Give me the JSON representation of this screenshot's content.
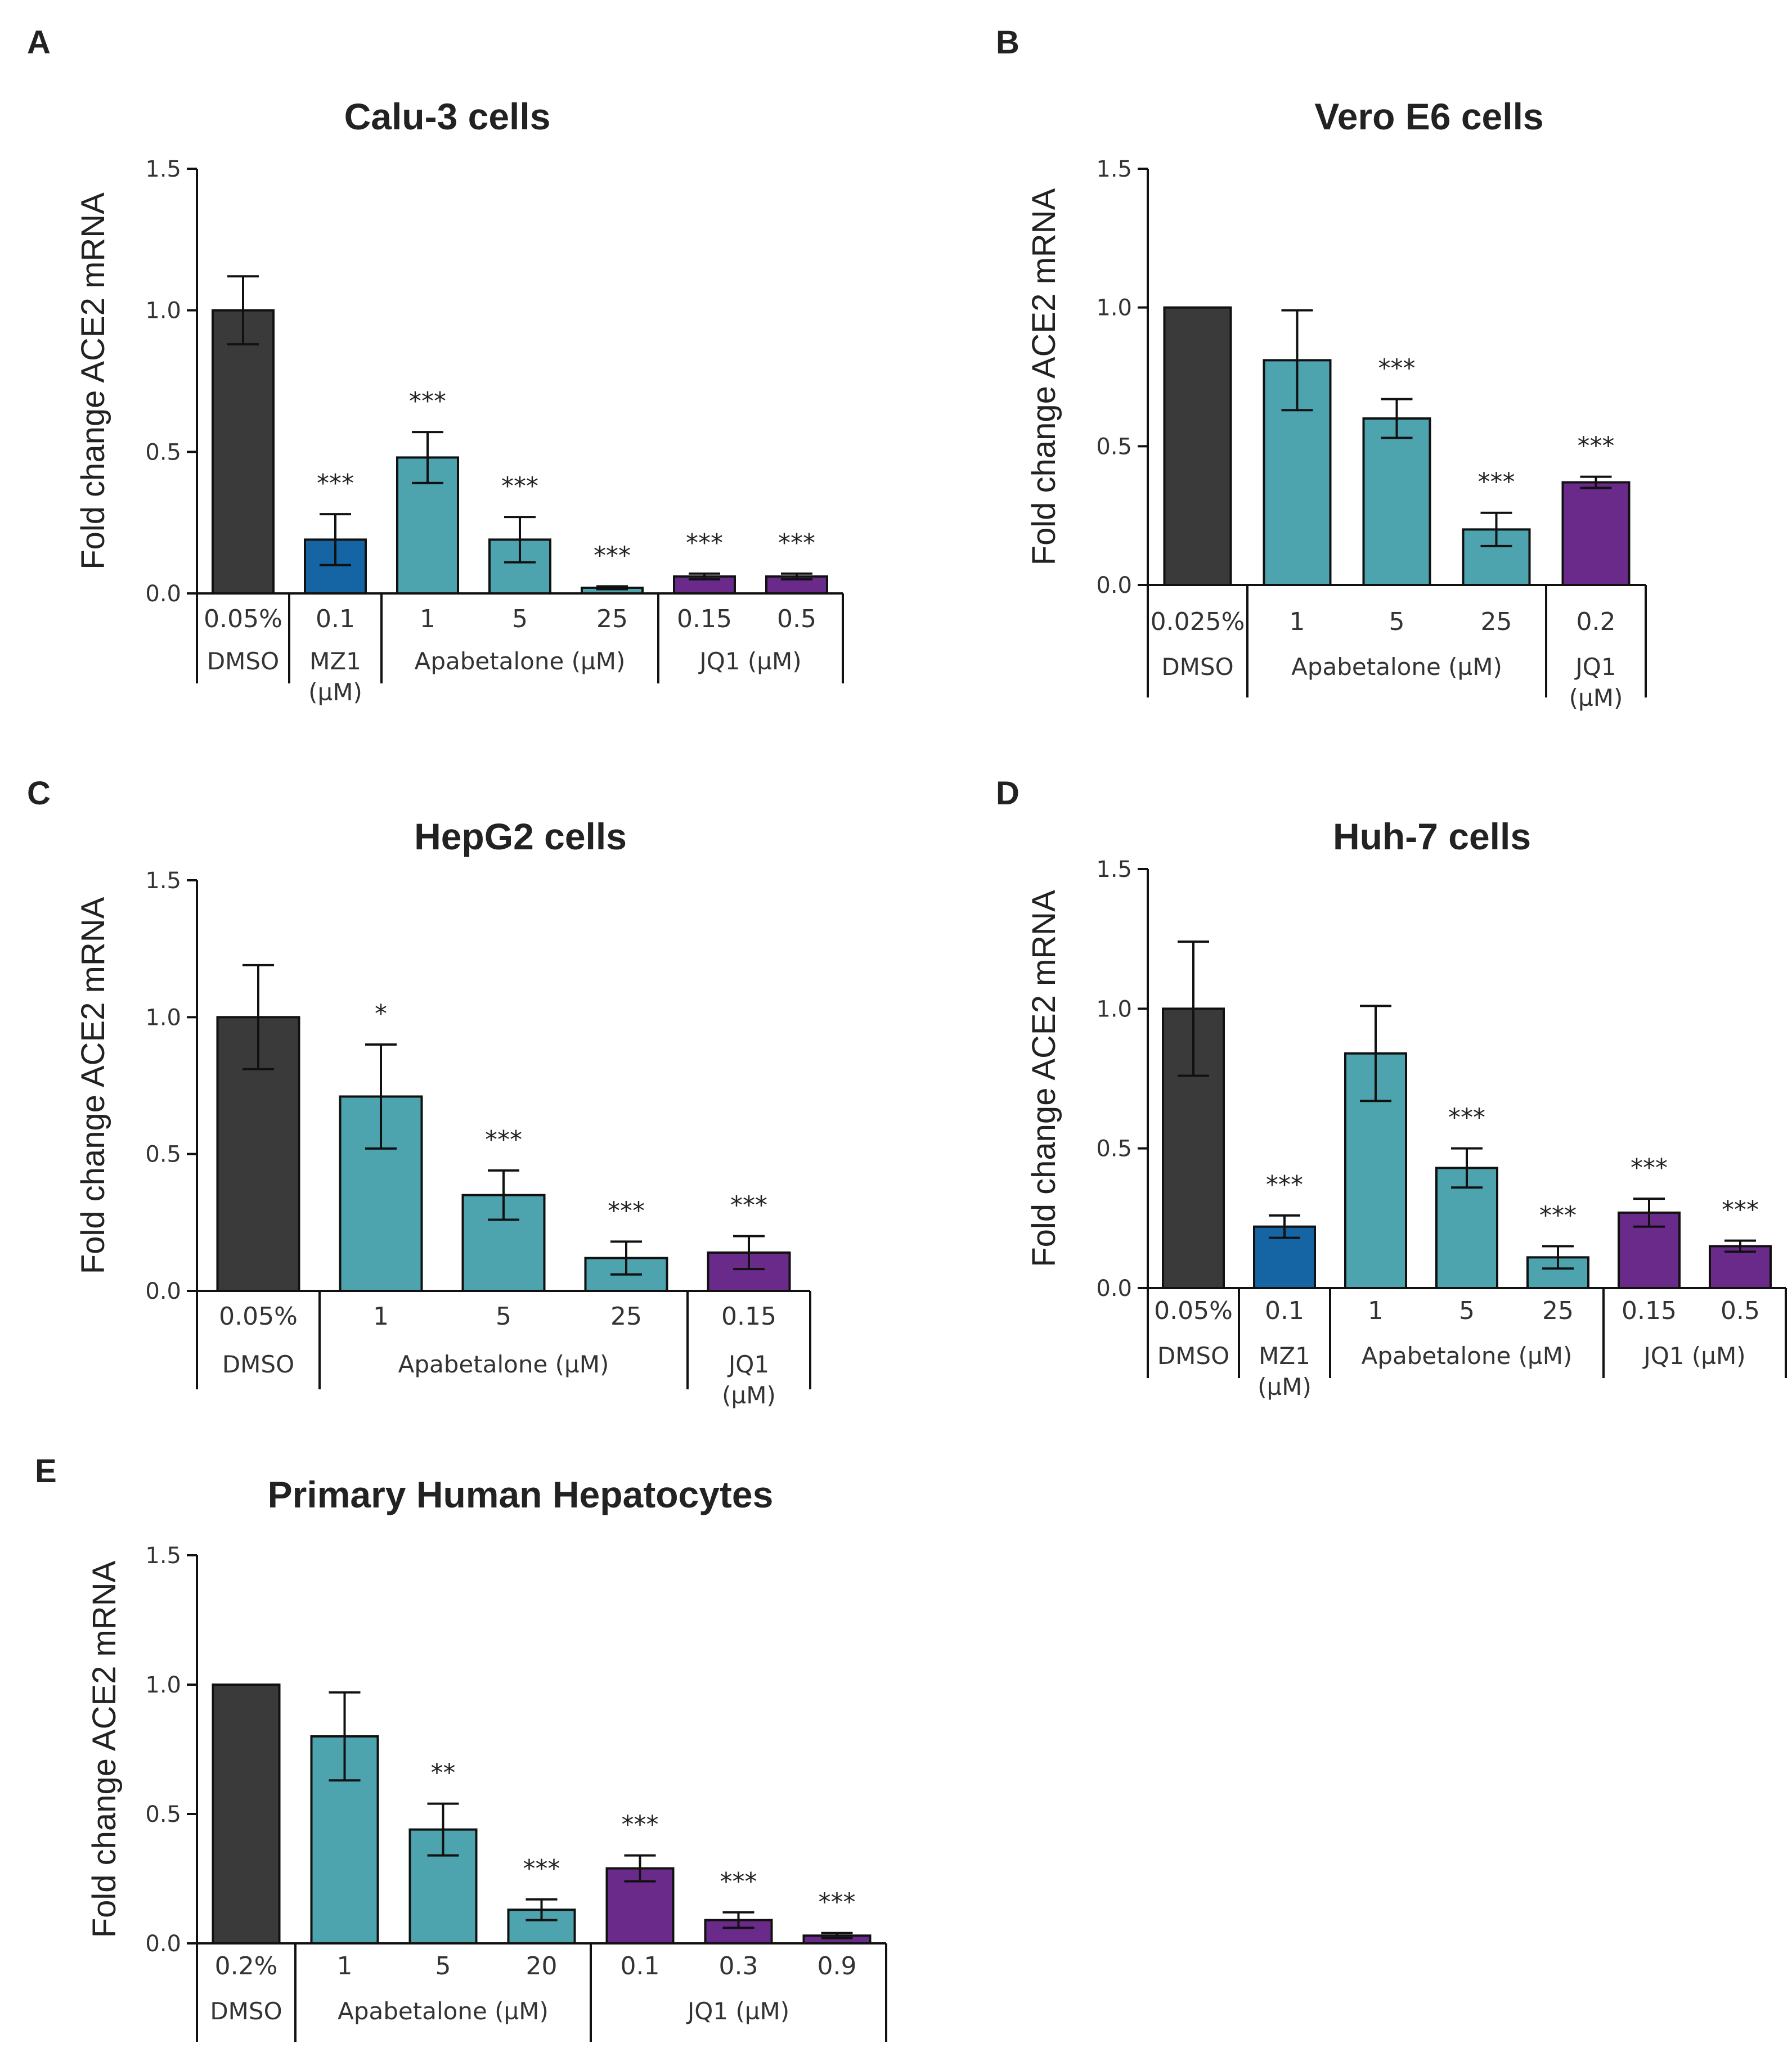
{
  "colors": {
    "dmso": "#3a3a3a",
    "mz1": "#1565a4",
    "apabetalone": "#4da3ae",
    "jq1": "#6a2a8a",
    "axis": "#111111"
  },
  "chart_data": [
    {
      "panel": "A",
      "type": "bar",
      "title": "Calu-3 cells",
      "ylabel": "Fold change ACE2  mRNA",
      "ylim": [
        0,
        1.5
      ],
      "yticks": [
        "0.0",
        "0.5",
        "1.0",
        "1.5"
      ],
      "categories": [
        "0.05%",
        "0.1",
        "1",
        "5",
        "25",
        "0.15",
        "0.5"
      ],
      "values": [
        1.0,
        0.19,
        0.48,
        0.19,
        0.02,
        0.06,
        0.06
      ],
      "errors": [
        0.12,
        0.09,
        0.09,
        0.08,
        0.005,
        0.01,
        0.01
      ],
      "colors": [
        "dmso",
        "mz1",
        "apabetalone",
        "apabetalone",
        "apabetalone",
        "jq1",
        "jq1"
      ],
      "significance": [
        "",
        "***",
        "***",
        "***",
        "***",
        "***",
        "***"
      ],
      "groups": [
        {
          "lines": [
            "DMSO"
          ],
          "from": 0,
          "to": 0
        },
        {
          "lines": [
            "MZ1",
            "(µM)"
          ],
          "from": 1,
          "to": 1
        },
        {
          "lines": [
            "Apabetalone (µM)"
          ],
          "from": 2,
          "to": 4
        },
        {
          "lines": [
            "JQ1 (µM)"
          ],
          "from": 5,
          "to": 6
        }
      ]
    },
    {
      "panel": "B",
      "type": "bar",
      "title": "Vero E6 cells",
      "ylabel": "Fold change ACE2  mRNA",
      "ylim": [
        0,
        1.5
      ],
      "yticks": [
        "0.0",
        "0.5",
        "1.0",
        "1.5"
      ],
      "categories": [
        "0.025%",
        "1",
        "5",
        "25",
        "0.2"
      ],
      "values": [
        1.0,
        0.81,
        0.6,
        0.2,
        0.37
      ],
      "errors": [
        0.0,
        0.18,
        0.07,
        0.06,
        0.02
      ],
      "colors": [
        "dmso",
        "apabetalone",
        "apabetalone",
        "apabetalone",
        "jq1"
      ],
      "significance": [
        "",
        "",
        "***",
        "***",
        "***"
      ],
      "groups": [
        {
          "lines": [
            "DMSO"
          ],
          "from": 0,
          "to": 0
        },
        {
          "lines": [
            "Apabetalone (µM)"
          ],
          "from": 1,
          "to": 3
        },
        {
          "lines": [
            "JQ1",
            "(µM)"
          ],
          "from": 4,
          "to": 4
        }
      ]
    },
    {
      "panel": "C",
      "type": "bar",
      "title": "HepG2 cells",
      "ylabel": "Fold change ACE2  mRNA",
      "ylim": [
        0,
        1.5
      ],
      "yticks": [
        "0.0",
        "0.5",
        "1.0",
        "1.5"
      ],
      "categories": [
        "0.05%",
        "1",
        "5",
        "25",
        "0.15"
      ],
      "values": [
        1.0,
        0.71,
        0.35,
        0.12,
        0.14
      ],
      "errors": [
        0.19,
        0.19,
        0.09,
        0.06,
        0.06
      ],
      "colors": [
        "dmso",
        "apabetalone",
        "apabetalone",
        "apabetalone",
        "jq1"
      ],
      "significance": [
        "",
        "*",
        "***",
        "***",
        "***"
      ],
      "groups": [
        {
          "lines": [
            "DMSO"
          ],
          "from": 0,
          "to": 0
        },
        {
          "lines": [
            "Apabetalone (µM)"
          ],
          "from": 1,
          "to": 3
        },
        {
          "lines": [
            "JQ1",
            "(µM)"
          ],
          "from": 4,
          "to": 4
        }
      ]
    },
    {
      "panel": "D",
      "type": "bar",
      "title": "Huh-7 cells",
      "ylabel": "Fold change ACE2  mRNA",
      "ylim": [
        0,
        1.5
      ],
      "yticks": [
        "0.0",
        "0.5",
        "1.0",
        "1.5"
      ],
      "categories": [
        "0.05%",
        "0.1",
        "1",
        "5",
        "25",
        "0.15",
        "0.5"
      ],
      "values": [
        1.0,
        0.22,
        0.84,
        0.43,
        0.11,
        0.27,
        0.15
      ],
      "errors": [
        0.24,
        0.04,
        0.17,
        0.07,
        0.04,
        0.05,
        0.02
      ],
      "colors": [
        "dmso",
        "mz1",
        "apabetalone",
        "apabetalone",
        "apabetalone",
        "jq1",
        "jq1"
      ],
      "significance": [
        "",
        "***",
        "",
        "***",
        "***",
        "***",
        "***"
      ],
      "groups": [
        {
          "lines": [
            "DMSO"
          ],
          "from": 0,
          "to": 0
        },
        {
          "lines": [
            "MZ1",
            "(µM)"
          ],
          "from": 1,
          "to": 1
        },
        {
          "lines": [
            "Apabetalone (µM)"
          ],
          "from": 2,
          "to": 4
        },
        {
          "lines": [
            "JQ1 (µM)"
          ],
          "from": 5,
          "to": 6
        }
      ]
    },
    {
      "panel": "E",
      "type": "bar",
      "title": "Primary Human Hepatocytes",
      "ylabel": "Fold change ACE2  mRNA",
      "ylim": [
        0,
        1.5
      ],
      "yticks": [
        "0.0",
        "0.5",
        "1.0",
        "1.5"
      ],
      "categories": [
        "0.2%",
        "1",
        "5",
        "20",
        "0.1",
        "0.3",
        "0.9"
      ],
      "values": [
        1.0,
        0.8,
        0.44,
        0.13,
        0.29,
        0.09,
        0.03
      ],
      "errors": [
        0.0,
        0.17,
        0.1,
        0.04,
        0.05,
        0.03,
        0.01
      ],
      "colors": [
        "dmso",
        "apabetalone",
        "apabetalone",
        "apabetalone",
        "jq1",
        "jq1",
        "jq1"
      ],
      "significance": [
        "",
        "",
        "**",
        "***",
        "***",
        "***",
        "***"
      ],
      "groups": [
        {
          "lines": [
            "DMSO"
          ],
          "from": 0,
          "to": 0
        },
        {
          "lines": [
            "Apabetalone (µM)"
          ],
          "from": 1,
          "to": 3
        },
        {
          "lines": [
            "JQ1 (µM)"
          ],
          "from": 4,
          "to": 6
        }
      ]
    }
  ]
}
